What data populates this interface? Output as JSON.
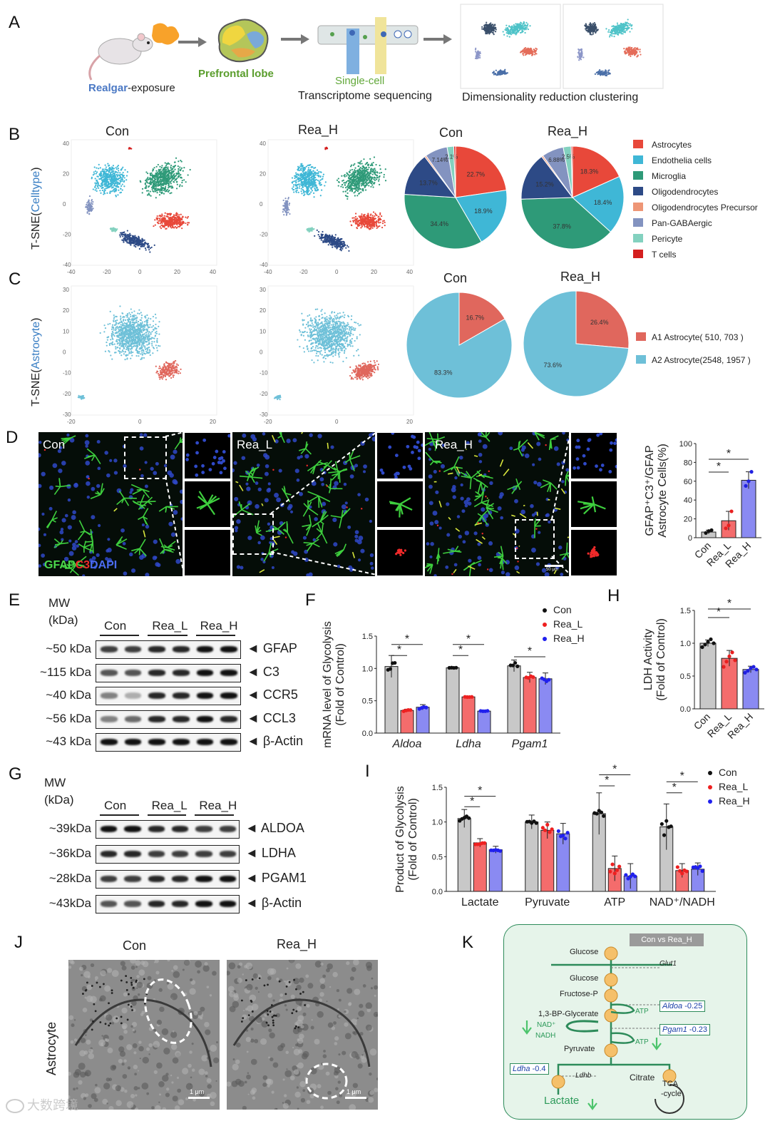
{
  "panels": [
    "A",
    "B",
    "C",
    "D",
    "E",
    "F",
    "G",
    "H",
    "I",
    "J",
    "K"
  ],
  "panel_a": {
    "realgar": "Realgar",
    "exposure": "-exposure",
    "prefrontal": "Prefrontal lobe",
    "single_cell": "Single-cell",
    "seq": "Transcriptome sequencing",
    "dim": "Dimensionality reduction clustering"
  },
  "panel_b": {
    "con": "Con",
    "rea_h": "Rea_H",
    "ylabel_pre": "T-SNE(",
    "ylabel_mid": "Celltype",
    "ylabel_post": ")",
    "yticks": [
      "40",
      "20",
      "0",
      "-20",
      "-40"
    ],
    "xticks": [
      "-40",
      "-20",
      "0",
      "20",
      "40"
    ]
  },
  "panel_c": {
    "con": "Con",
    "rea_h": "Rea_H",
    "ylabel_pre": "T-SNE(",
    "ylabel_mid": "Astrocyte",
    "ylabel_post": ")",
    "yticks": [
      "30",
      "20",
      "10",
      "0",
      "-10",
      "-20",
      "-30"
    ],
    "xticks": [
      "-20",
      "0",
      "20"
    ]
  },
  "legend_celltype": [
    {
      "label": "Astrocytes",
      "color": "#e8483a"
    },
    {
      "label": "Endothelia cells",
      "color": "#3fb7d6"
    },
    {
      "label": "Microglia",
      "color": "#2e9a78"
    },
    {
      "label": "Oligodendrocytes",
      "color": "#2d4a86"
    },
    {
      "label": "Oligodendrocytes Precursor",
      "color": "#ee9676"
    },
    {
      "label": "Pan-GABAergic",
      "color": "#8393c0"
    },
    {
      "label": "Pericyte",
      "color": "#83d1bf"
    },
    {
      "label": "T cells",
      "color": "#d41f1f"
    }
  ],
  "legend_astro": [
    {
      "label": "A1 Astrocyte( 510, 703 )",
      "color": "#e0675d"
    },
    {
      "label": "A2 Astrocyte(2548, 1957 )",
      "color": "#6ec0d8"
    }
  ],
  "panel_d": {
    "con": "Con",
    "rea_l": "Rea_L",
    "rea_h": "Rea_H",
    "stain_gfap": "GFAP",
    "stain_c3": "C3",
    "stain_dapi": "DAPI",
    "scale": "50 μm"
  },
  "panel_e": {
    "mw": "MW",
    "kda": "(kDa)",
    "groups": [
      "Con",
      "Rea_L",
      "Rea_H"
    ],
    "rows": [
      {
        "mw": "~50 kDa",
        "name": "◄ GFAP"
      },
      {
        "mw": "~115 kDa",
        "name": "◄ C3"
      },
      {
        "mw": "~40 kDa",
        "name": "◄ CCR5"
      },
      {
        "mw": "~56 kDa",
        "name": "◄ CCL3"
      },
      {
        "mw": "~43 kDa",
        "name": "◄ β-Actin"
      }
    ]
  },
  "panel_g": {
    "mw": "MW",
    "kda": "(kDa)",
    "groups": [
      "Con",
      "Rea_L",
      "Rea_H"
    ],
    "rows": [
      {
        "mw": "~39kDa",
        "name": "◄ ALDOA"
      },
      {
        "mw": "~36kDa",
        "name": "◄ LDHA"
      },
      {
        "mw": "~28kDa",
        "name": "◄ PGAM1"
      },
      {
        "mw": "~43kDa",
        "name": "◄ β-Actin"
      }
    ]
  },
  "panel_j": {
    "con": "Con",
    "rea_h": "Rea_H",
    "ylabel": "Astrocyte",
    "scale": "1 μm"
  },
  "panel_k": {
    "header": "Con vs Rea_H",
    "glucose1": "Glucose",
    "glut1": "Glut1",
    "glucose2": "Glucose",
    "fructose": "Fructose-P",
    "bpg": "1,3-BP-Glycerate",
    "pyruvate": "Pyruvate",
    "lactate": "Lactate",
    "citrate": "Citrate",
    "tca": "TCA",
    "cycle": "-cycle",
    "atp": "ATP",
    "nad": "NAD⁺",
    "nadh": "NADH",
    "ldhb": "Ldhb",
    "aldoa": "Aldoa",
    "aldoa_val": "-0.25",
    "pgam1": "Pgam1",
    "pgam1_val": "-0.23",
    "ldha": "Ldha",
    "ldha_val": "-0.4"
  },
  "watermark": "大数跨境",
  "chart_data": [
    {
      "type": "pie",
      "id": "B-Con",
      "title": "Con",
      "labels": [
        "Astrocytes",
        "Endothelia cells",
        "Microglia",
        "Oligodendrocytes",
        "Oligodendrocytes Precursor",
        "Pan-GABAergic",
        "Pericyte",
        "T cells"
      ],
      "values": [
        22.7,
        18.9,
        34.4,
        13.7,
        0.5,
        7.14,
        2.1,
        0.56
      ],
      "display": [
        "22.7%",
        "18.9%",
        "34.4%",
        "13.7%",
        "",
        "7.14%",
        "2.1%",
        ""
      ]
    },
    {
      "type": "pie",
      "id": "B-ReaH",
      "title": "Rea_H",
      "labels": [
        "Astrocytes",
        "Endothelia cells",
        "Microglia",
        "Oligodendrocytes",
        "Oligodendrocytes Precursor",
        "Pan-GABAergic",
        "Pericyte",
        "T cells"
      ],
      "values": [
        18.3,
        18.4,
        37.8,
        15.2,
        0.5,
        6.88,
        2.5,
        0.42
      ],
      "display": [
        "18.3%",
        "18.4%",
        "37.8%",
        "15.2%",
        "",
        "6.88%",
        "2.5%",
        ""
      ]
    },
    {
      "type": "pie",
      "id": "C-Con",
      "title": "Con",
      "labels": [
        "A1 Astrocyte",
        "A2 Astrocyte"
      ],
      "values": [
        16.7,
        83.3
      ],
      "display": [
        "16.7%",
        "83.3%"
      ]
    },
    {
      "type": "pie",
      "id": "C-ReaH",
      "title": "Rea_H",
      "labels": [
        "A1 Astrocyte",
        "A2 Astrocyte"
      ],
      "values": [
        26.4,
        73.6
      ],
      "display": [
        "26.4%",
        "73.6%"
      ]
    },
    {
      "type": "bar",
      "id": "D",
      "categories": [
        "Con",
        "Rea_L",
        "Rea_H"
      ],
      "values": [
        6,
        18,
        61
      ],
      "errors": [
        2,
        10,
        9
      ],
      "points": [
        [
          5,
          7,
          8
        ],
        [
          10,
          13,
          28
        ],
        [
          55,
          60,
          70
        ]
      ],
      "ylabel_line1": "GFAP⁺C3⁺/GFAP",
      "ylabel_line2": "Astrocyte Cells(%)",
      "ylim": [
        0,
        100
      ],
      "yticks": [
        "0",
        "20",
        "40",
        "60",
        "80",
        "100"
      ],
      "colors": [
        "#c8c8c8",
        "#f46c6c",
        "#8a8af2"
      ]
    },
    {
      "type": "bar",
      "id": "F",
      "categories": [
        "Aldoa",
        "Ldha",
        "Pgam1"
      ],
      "series": [
        {
          "name": "Con",
          "values": [
            1.03,
            1.01,
            1.04
          ],
          "errors": [
            0.17,
            0.01,
            0.09
          ]
        },
        {
          "name": "Rea_L",
          "values": [
            0.35,
            0.56,
            0.86
          ],
          "errors": [
            0.02,
            0.01,
            0.08
          ]
        },
        {
          "name": "Rea_H",
          "values": [
            0.4,
            0.34,
            0.84
          ],
          "errors": [
            0.04,
            0.01,
            0.09
          ]
        }
      ],
      "ylabel_line1": "mRNA level of Glycolysis",
      "ylabel_line2": "(Fold of Control)",
      "ylim": [
        0,
        1.5
      ],
      "yticks": [
        "0.0",
        "0.5",
        "1.0",
        "1.5"
      ],
      "legend_colors": [
        "#111111",
        "#ee2020",
        "#2020ee"
      ],
      "bar_colors": [
        "#c8c8c8",
        "#f46c6c",
        "#8a8af2"
      ]
    },
    {
      "type": "bar",
      "id": "H",
      "categories": [
        "Con",
        "Rea_L",
        "Rea_H"
      ],
      "values": [
        1.0,
        0.77,
        0.6
      ],
      "errors": [
        0.05,
        0.12,
        0.05
      ],
      "points": [
        [
          0.94,
          0.98,
          1.02,
          1.06,
          1.0
        ],
        [
          0.64,
          0.72,
          0.8,
          0.86,
          0.74
        ],
        [
          0.55,
          0.58,
          0.62,
          0.64,
          0.6
        ]
      ],
      "ylabel_line1": "LDH Activity",
      "ylabel_line2": "(Fold of Control)",
      "ylim": [
        0,
        1.5
      ],
      "yticks": [
        "0.0",
        "0.5",
        "1.0",
        "1.5"
      ],
      "colors": [
        "#c8c8c8",
        "#f46c6c",
        "#8a8af2"
      ]
    },
    {
      "type": "bar",
      "id": "I",
      "categories": [
        "Lactate",
        "Pyruvate",
        "ATP",
        "NAD⁺/NADH"
      ],
      "series": [
        {
          "name": "Con",
          "values": [
            1.05,
            1.0,
            1.12,
            0.93
          ],
          "errors": [
            0.13,
            0.1,
            0.3,
            0.33
          ]
        },
        {
          "name": "Rea_L",
          "values": [
            0.7,
            0.88,
            0.33,
            0.3
          ],
          "errors": [
            0.06,
            0.12,
            0.18,
            0.1
          ]
        },
        {
          "name": "Rea_H",
          "values": [
            0.6,
            0.83,
            0.22,
            0.32
          ],
          "errors": [
            0.05,
            0.15,
            0.18,
            0.09
          ]
        }
      ],
      "ylabel_line1": "Product of Glycolysis",
      "ylabel_line2": "(Fold of Control)",
      "ylim": [
        0,
        1.5
      ],
      "yticks": [
        "0.0",
        "0.5",
        "1.0",
        "1.5"
      ],
      "legend_colors": [
        "#111111",
        "#ee2020",
        "#2020ee"
      ],
      "bar_colors": [
        "#c8c8c8",
        "#f46c6c",
        "#8a8af2"
      ]
    }
  ]
}
